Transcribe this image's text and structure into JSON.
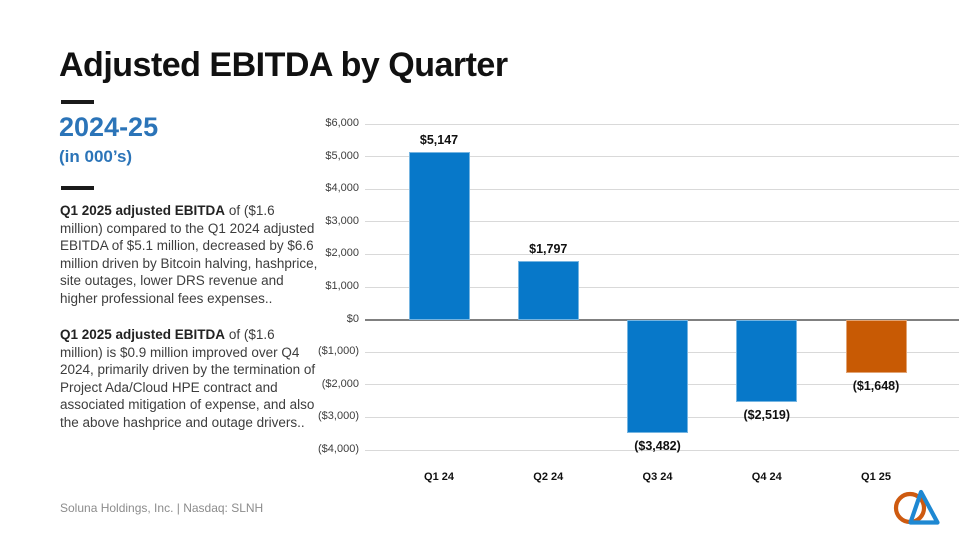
{
  "slide": {
    "title": "Adjusted EBITDA by Quarter",
    "period_heading": "2024-25",
    "period_note": "(in 000’s)",
    "footer": "Soluna Holdings, Inc. | Nasdaq: SLNH"
  },
  "commentary": [
    {
      "bold": "Q1 2025 adjusted EBITDA",
      "rest": " of ($1.6 million) compared to the Q1 2024 adjusted EBITDA of $5.1 million, decreased by $6.6 million driven by Bitcoin halving, hashprice, site outages, lower DRS revenue and higher professional fees expenses.."
    },
    {
      "bold": "Q1 2025 adjusted EBITDA",
      "rest": " of ($1.6 million) is $0.9 million improved over Q4 2024, primarily driven by the termination of Project Ada/Cloud HPE contract and associated mitigation of expense, and also the above hashprice and outage drivers.."
    }
  ],
  "colors": {
    "accent_blue": "#2b74b8",
    "bar_blue": "#0778c9",
    "bar_orange": "#c85a04",
    "grid_line": "#d9d9d9",
    "zero_line": "#808080",
    "footer_text": "#8c8c8c",
    "logo_orange": "#ce5a10",
    "logo_blue": "#1e88d2"
  },
  "chart_data": {
    "type": "bar",
    "title": "Adjusted EBITDA by Quarter (in 000's)",
    "categories": [
      "Q1 24",
      "Q2 24",
      "Q3 24",
      "Q4 24",
      "Q1 25"
    ],
    "values": [
      5147,
      1797,
      -3482,
      -2519,
      -1648
    ],
    "data_labels": [
      "$5,147",
      "$1,797",
      "($3,482)",
      "($2,519)",
      "($1,648)"
    ],
    "bar_colors": [
      "#0778c9",
      "#0778c9",
      "#0778c9",
      "#0778c9",
      "#c85a04"
    ],
    "ylim": [
      -4000,
      6000
    ],
    "y_ticks": [
      {
        "value": 6000,
        "label": "$6,000"
      },
      {
        "value": 5000,
        "label": "$5,000"
      },
      {
        "value": 4000,
        "label": "$4,000"
      },
      {
        "value": 3000,
        "label": "$3,000"
      },
      {
        "value": 2000,
        "label": "$2,000"
      },
      {
        "value": 1000,
        "label": "$1,000"
      },
      {
        "value": 0,
        "label": "$0"
      },
      {
        "value": -1000,
        "label": "($1,000)"
      },
      {
        "value": -2000,
        "label": "($2,000"
      },
      {
        "value": -3000,
        "label": "($3,000)"
      },
      {
        "value": -4000,
        "label": "($4,000)"
      }
    ],
    "grid": true,
    "legend": "none"
  }
}
